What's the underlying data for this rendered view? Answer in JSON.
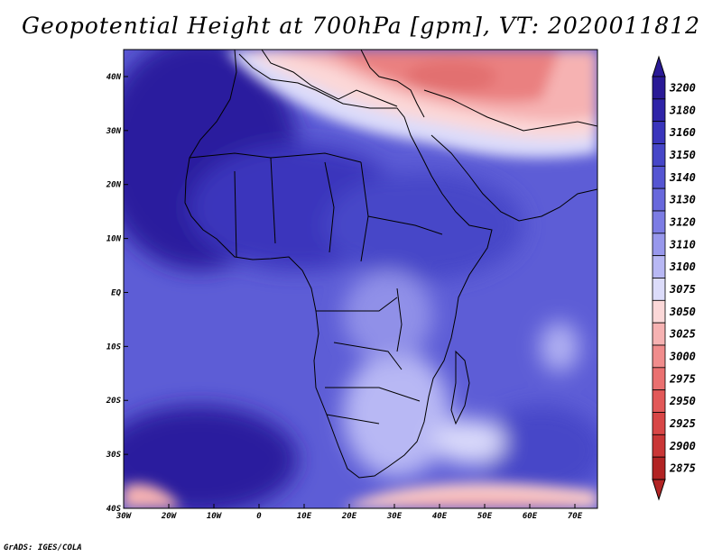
{
  "title": "Geopotential Height at 700hPa [gpm], VT: 2020011812",
  "credit": "GrADS: IGES/COLA",
  "map": {
    "lon_range": [
      -30,
      75
    ],
    "lat_range": [
      -40,
      45
    ],
    "lat_labels": [
      {
        "lat": 40,
        "label": "40N"
      },
      {
        "lat": 30,
        "label": "30N"
      },
      {
        "lat": 20,
        "label": "20N"
      },
      {
        "lat": 10,
        "label": "10N"
      },
      {
        "lat": 0,
        "label": "EQ"
      },
      {
        "lat": -10,
        "label": "10S"
      },
      {
        "lat": -20,
        "label": "20S"
      },
      {
        "lat": -30,
        "label": "30S"
      },
      {
        "lat": -40,
        "label": "40S"
      }
    ],
    "lon_labels": [
      {
        "lon": -30,
        "label": "30W"
      },
      {
        "lon": -20,
        "label": "20W"
      },
      {
        "lon": -10,
        "label": "10W"
      },
      {
        "lon": 0,
        "label": "0"
      },
      {
        "lon": 10,
        "label": "10E"
      },
      {
        "lon": 20,
        "label": "20E"
      },
      {
        "lon": 30,
        "label": "30E"
      },
      {
        "lon": 40,
        "label": "40E"
      },
      {
        "lon": 50,
        "label": "50E"
      },
      {
        "lon": 60,
        "label": "60E"
      },
      {
        "lon": 70,
        "label": "70E"
      }
    ]
  },
  "colorbar": {
    "levels": [
      {
        "label": "3200",
        "color": "#2a1a96"
      },
      {
        "label": "3180",
        "color": "#2f24a8"
      },
      {
        "label": "3160",
        "color": "#3a35bc"
      },
      {
        "label": "3150",
        "color": "#4646c8"
      },
      {
        "label": "3140",
        "color": "#5555d2"
      },
      {
        "label": "3130",
        "color": "#6868dc"
      },
      {
        "label": "3120",
        "color": "#7c7ce4"
      },
      {
        "label": "3110",
        "color": "#9898ec"
      },
      {
        "label": "3100",
        "color": "#b8b8f4"
      },
      {
        "label": "3075",
        "color": "#dcdcfa"
      },
      {
        "label": "3050",
        "color": "#fbd8d8"
      },
      {
        "label": "3025",
        "color": "#f6b2b2"
      },
      {
        "label": "3000",
        "color": "#f08c8c"
      },
      {
        "label": "2975",
        "color": "#ea7070"
      },
      {
        "label": "2950",
        "color": "#e25858"
      },
      {
        "label": "2925",
        "color": "#d84646"
      },
      {
        "label": "2900",
        "color": "#c93636"
      },
      {
        "label": "2875",
        "color": "#b22424"
      }
    ],
    "top_arrow_color": "#2a1a96",
    "bottom_arrow_color": "#b22424"
  }
}
